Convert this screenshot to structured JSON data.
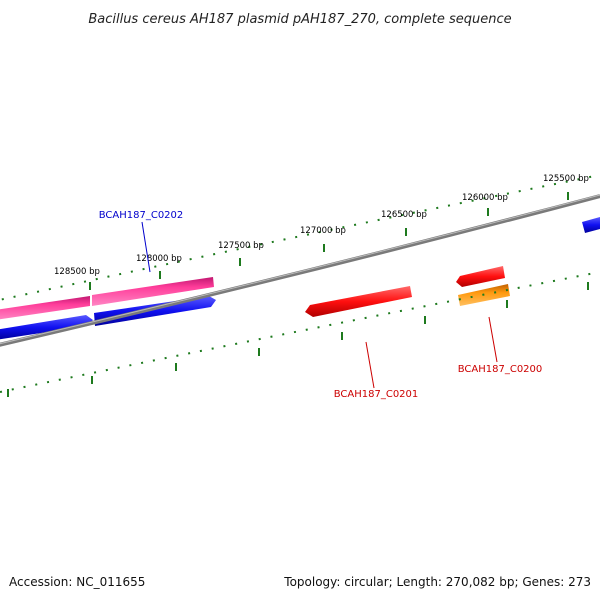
{
  "title": "Bacillus cereus AH187 plasmid pAH187_270, complete sequence",
  "footer": {
    "accession": "Accession: NC_011655",
    "summary": "Topology: circular; Length: 270,082 bp; Genes: 273"
  },
  "colors": {
    "backbone": "#7a7a7a",
    "tick": "#1e7a1e",
    "forward_label": "#0000cc",
    "reverse_label": "#cc0000",
    "pink": "#ff3d9a",
    "blue": "#1010f0",
    "red": "#ff1010",
    "orange": "#ff9a10"
  },
  "ticks": [
    {
      "label": "128500 bp"
    },
    {
      "label": "128000 bp"
    },
    {
      "label": "127500 bp"
    },
    {
      "label": "127000 bp"
    },
    {
      "label": "126500 bp"
    },
    {
      "label": "126000 bp"
    },
    {
      "label": "125500 bp"
    }
  ],
  "genes": [
    {
      "label": "BCAH187_C0202",
      "color": "forward_label"
    },
    {
      "label": "BCAH187_C0201",
      "color": "reverse_label"
    },
    {
      "label": "BCAH187_C0200",
      "color": "reverse_label"
    }
  ]
}
